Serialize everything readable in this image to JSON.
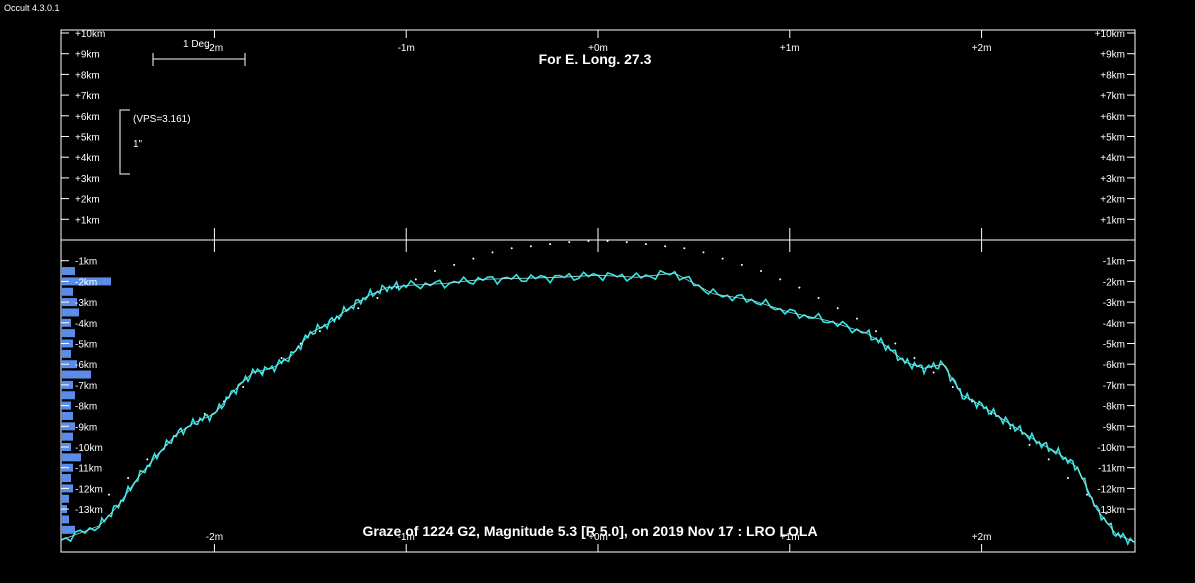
{
  "window": {
    "title": "Occult 4.3.0.1"
  },
  "chart_data": {
    "type": "line",
    "title": "For E. Long. 27.3",
    "footer": "Graze of  1224 G2,  Magnitude 5.3 [R 5.0],  on 2019 Nov 17  :  LRO LOLA",
    "scale_bar_label": "1 Deg",
    "vps_label": "(VPS=3.161)",
    "arcsec_label": "1\"",
    "x_ticks": [
      "-2m",
      "-1m",
      "+0m",
      "+1m",
      "+2m"
    ],
    "x_tick_values": [
      -2,
      -1,
      0,
      1,
      2
    ],
    "xlim": [
      -2.8,
      2.8
    ],
    "y_upper_ticks": [
      "+10km",
      "+9km",
      "+8km",
      "+7km",
      "+6km",
      "+5km",
      "+4km",
      "+3km",
      "+2km",
      "+1km"
    ],
    "y_upper_values": [
      10,
      9,
      8,
      7,
      6,
      5,
      4,
      3,
      2,
      1
    ],
    "y_lower_ticks": [
      "-1km",
      "-2km",
      "-3km",
      "-4km",
      "-5km",
      "-6km",
      "-7km",
      "-8km",
      "-9km",
      "-10km",
      "-11km",
      "-12km",
      "-13km"
    ],
    "y_lower_values": [
      -1,
      -2,
      -3,
      -4,
      -5,
      -6,
      -7,
      -8,
      -9,
      -10,
      -11,
      -12,
      -13
    ],
    "ylim_upper": [
      0,
      10
    ],
    "ylim_lower": [
      -14.3,
      0
    ],
    "limb_profile": {
      "x": [
        -2.8,
        -2.6,
        -2.5,
        -2.4,
        -2.3,
        -2.2,
        -2.1,
        -2.0,
        -1.9,
        -1.8,
        -1.7,
        -1.6,
        -1.5,
        -1.4,
        -1.3,
        -1.2,
        -1.1,
        -1.0,
        -0.8,
        -0.6,
        -0.4,
        -0.2,
        0.0,
        0.2,
        0.4,
        0.6,
        0.8,
        1.0,
        1.2,
        1.4,
        1.5,
        1.6,
        1.7,
        1.8,
        1.9,
        2.0,
        2.1,
        2.2,
        2.3,
        2.4,
        2.5,
        2.6,
        2.7,
        2.8
      ],
      "y": [
        -14.5,
        -13.8,
        -12.8,
        -11.5,
        -10.4,
        -9.4,
        -8.8,
        -8.4,
        -7.3,
        -6.4,
        -6.2,
        -5.6,
        -4.5,
        -4.0,
        -3.3,
        -2.7,
        -2.3,
        -2.2,
        -2.1,
        -1.9,
        -1.85,
        -1.8,
        -1.7,
        -1.8,
        -1.6,
        -2.6,
        -2.9,
        -3.5,
        -3.9,
        -4.5,
        -5.1,
        -5.9,
        -6.2,
        -6.0,
        -7.5,
        -8.0,
        -8.6,
        -9.2,
        -9.8,
        -10.3,
        -11.0,
        -13.0,
        -14.2,
        -14.6
      ]
    },
    "dotted_limb": {
      "x": [
        -2.55,
        -2.45,
        -2.35,
        -2.25,
        -2.15,
        -2.05,
        -1.95,
        -1.85,
        -1.75,
        -1.65,
        -1.55,
        -1.45,
        -1.35,
        -1.25,
        -1.15,
        -1.05,
        -0.95,
        -0.85,
        -0.75,
        -0.65,
        -0.55,
        -0.45,
        -0.35,
        -0.25,
        -0.15,
        -0.05,
        0.05,
        0.15,
        0.25,
        0.35,
        0.45,
        0.55,
        0.65,
        0.75,
        0.85,
        0.95,
        1.05,
        1.15,
        1.25,
        1.35,
        1.45,
        1.55,
        1.65,
        1.75,
        1.85,
        1.95,
        2.05,
        2.15,
        2.25,
        2.35,
        2.45,
        2.55,
        2.65
      ],
      "y": [
        -12.3,
        -11.5,
        -10.6,
        -9.9,
        -9.1,
        -8.4,
        -7.8,
        -7.1,
        -6.4,
        -5.7,
        -5.0,
        -4.4,
        -3.8,
        -3.3,
        -2.8,
        -2.3,
        -1.9,
        -1.5,
        -1.2,
        -0.9,
        -0.6,
        -0.4,
        -0.3,
        -0.2,
        -0.1,
        -0.05,
        -0.05,
        -0.1,
        -0.2,
        -0.3,
        -0.4,
        -0.6,
        -0.9,
        -1.2,
        -1.5,
        -1.9,
        -2.3,
        -2.8,
        -3.3,
        -3.8,
        -4.4,
        -5.0,
        -5.7,
        -6.4,
        -7.1,
        -7.8,
        -8.4,
        -9.1,
        -9.9,
        -10.6,
        -11.5,
        -12.3,
        -13.2
      ]
    },
    "histogram": {
      "y": [
        -1.5,
        -2.0,
        -2.5,
        -3.0,
        -3.5,
        -4.0,
        -4.5,
        -5.0,
        -5.5,
        -6.0,
        -6.5,
        -7.0,
        -7.5,
        -8.0,
        -8.5,
        -9.0,
        -9.5,
        -10.0,
        -10.5,
        -11.0,
        -11.5,
        -12.0,
        -12.5,
        -13.0,
        -13.5,
        -14.0
      ],
      "width": [
        14,
        50,
        12,
        16,
        18,
        10,
        14,
        12,
        10,
        16,
        30,
        12,
        14,
        10,
        12,
        14,
        12,
        10,
        20,
        12,
        10,
        12,
        8,
        6,
        8,
        14
      ]
    },
    "colors": {
      "profile": "#2ee6e6",
      "histogram": "#5b8de8",
      "axis": "#ffffff",
      "background": "#000000"
    },
    "grid": false
  }
}
